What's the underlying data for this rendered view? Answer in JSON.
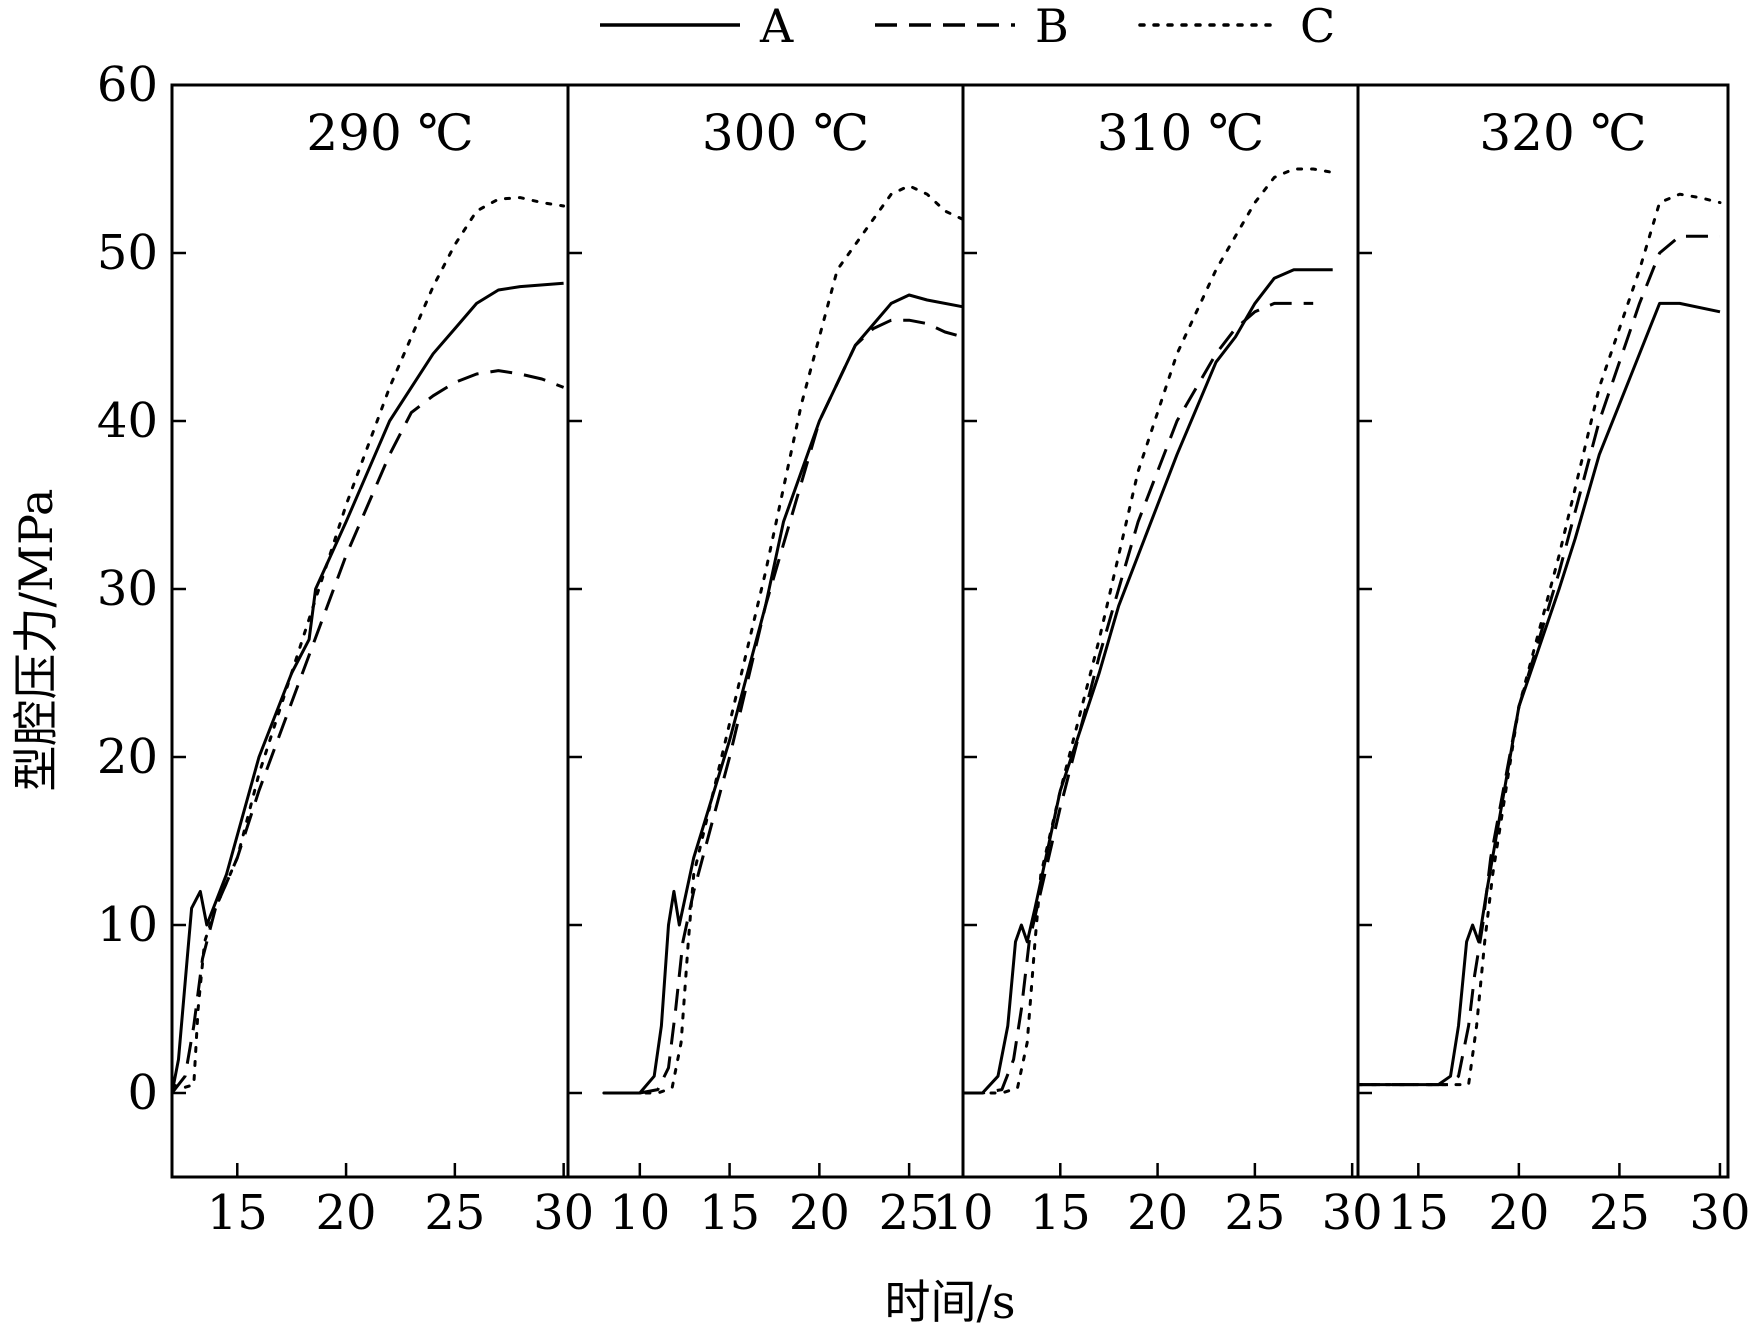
{
  "figure": {
    "xlabel": "时间/s",
    "ylabel": "型腔压力/MPa",
    "legend": [
      {
        "name": "A",
        "style": "solid"
      },
      {
        "name": "B",
        "style": "dashed"
      },
      {
        "name": "C",
        "style": "dotted"
      }
    ],
    "colors": {
      "line": "#000000",
      "background": "#ffffff"
    }
  },
  "chart_data": [
    {
      "type": "line",
      "title": "290 ℃",
      "xlim": [
        12,
        30.2
      ],
      "ylim": [
        -5,
        60
      ],
      "xticks": [
        15,
        20,
        25,
        30
      ],
      "yticks": [
        0,
        10,
        20,
        30,
        40,
        50,
        60
      ],
      "series": [
        {
          "name": "A",
          "x": [
            12,
            12.3,
            12.7,
            12.9,
            13.3,
            13.6,
            14.5,
            16,
            17.5,
            18.3,
            18.6,
            20,
            22,
            24,
            25,
            26,
            27,
            28,
            30
          ],
          "y": [
            0,
            2,
            8,
            11,
            12,
            10,
            13,
            20,
            25,
            27,
            30,
            34,
            40,
            44,
            45.5,
            47,
            47.8,
            48,
            48.2
          ]
        },
        {
          "name": "B",
          "x": [
            12,
            12.6,
            13,
            13.4,
            14,
            15,
            16,
            18,
            20,
            22,
            23,
            24,
            25,
            26,
            27,
            28,
            29,
            30
          ],
          "y": [
            0,
            1,
            4,
            8,
            11,
            14,
            18,
            25,
            32,
            38,
            40.5,
            41.5,
            42.3,
            42.8,
            43,
            42.8,
            42.5,
            42
          ]
        },
        {
          "name": "C",
          "x": [
            12,
            12.5,
            13,
            13.2,
            13.5,
            14,
            15,
            16,
            18,
            20,
            22,
            24,
            25,
            26,
            27,
            28,
            29,
            30
          ],
          "y": [
            0.5,
            0.3,
            0.5,
            5,
            9,
            11,
            14,
            19,
            27,
            35,
            42,
            48,
            50.5,
            52.5,
            53.2,
            53.3,
            53,
            52.8
          ]
        }
      ]
    },
    {
      "type": "line",
      "title": "300 ℃",
      "xlim": [
        6,
        28
      ],
      "ylim": [
        -5,
        60
      ],
      "xticks": [
        10,
        15,
        20,
        25
      ],
      "yticks": [
        0,
        10,
        20,
        30,
        40,
        50,
        60
      ],
      "series": [
        {
          "name": "A",
          "x": [
            8,
            10,
            10.8,
            11.2,
            11.6,
            11.9,
            12.2,
            12.6,
            13,
            15,
            17,
            18,
            20,
            22,
            24,
            25,
            26,
            28
          ],
          "y": [
            0,
            0,
            1,
            4,
            10,
            12,
            10,
            12,
            14,
            21,
            29,
            34,
            40,
            44.5,
            47,
            47.5,
            47.2,
            46.8
          ]
        },
        {
          "name": "B",
          "x": [
            8,
            10,
            11,
            11.6,
            12,
            12.4,
            13,
            15,
            17,
            20,
            22,
            23,
            24,
            25,
            26,
            27,
            28
          ],
          "y": [
            0,
            0,
            0.2,
            1.5,
            5,
            9,
            12,
            20,
            29,
            40,
            44.5,
            45.5,
            46,
            46,
            45.8,
            45.3,
            45
          ]
        },
        {
          "name": "C",
          "x": [
            8,
            10,
            11,
            11.8,
            12.3,
            12.7,
            13,
            15,
            17,
            19,
            21,
            23,
            24,
            25,
            26,
            27,
            28
          ],
          "y": [
            0,
            0,
            0,
            0.3,
            3,
            9,
            13,
            22,
            31,
            41,
            49,
            52,
            53.5,
            54,
            53.5,
            52.5,
            52
          ]
        }
      ]
    },
    {
      "type": "line",
      "title": "310 ℃",
      "xlim": [
        10,
        30.3
      ],
      "ylim": [
        -5,
        60
      ],
      "xticks": [
        10,
        15,
        20,
        25,
        30
      ],
      "yticks": [
        0,
        10,
        20,
        30,
        40,
        50,
        60
      ],
      "series": [
        {
          "name": "A",
          "x": [
            10,
            11,
            11.8,
            12.3,
            12.7,
            13,
            13.3,
            13.7,
            15,
            17,
            18,
            19,
            21,
            23,
            24,
            25,
            26,
            27,
            28,
            29
          ],
          "y": [
            0,
            0,
            1,
            4,
            9,
            10,
            9,
            11,
            18,
            25,
            29,
            32,
            38,
            43.5,
            45,
            47,
            48.5,
            49,
            49,
            49
          ]
        },
        {
          "name": "B",
          "x": [
            10,
            11,
            12,
            12.6,
            13,
            13.4,
            14,
            15,
            17,
            19,
            21,
            23,
            24,
            25,
            26,
            27,
            28
          ],
          "y": [
            0,
            0,
            0.2,
            2,
            5,
            9,
            12,
            17,
            26,
            34,
            40,
            44,
            45.5,
            46.5,
            47,
            47,
            47
          ]
        },
        {
          "name": "C",
          "x": [
            10,
            11,
            12,
            12.8,
            13.3,
            13.7,
            14,
            15,
            17,
            19,
            21,
            23,
            24,
            25,
            26,
            27,
            28,
            29
          ],
          "y": [
            0,
            0,
            0,
            0.3,
            3,
            9,
            13,
            18,
            27,
            37,
            44,
            49,
            51,
            53,
            54.5,
            55,
            55,
            54.8
          ]
        }
      ]
    },
    {
      "type": "line",
      "title": "320 ℃",
      "xlim": [
        12,
        30.4
      ],
      "ylim": [
        -5,
        60
      ],
      "xticks": [
        15,
        20,
        25,
        30
      ],
      "yticks": [
        0,
        10,
        20,
        30,
        40,
        50,
        60
      ],
      "series": [
        {
          "name": "A",
          "x": [
            12,
            14,
            16,
            16.6,
            17,
            17.4,
            17.7,
            18,
            18.4,
            20,
            22,
            22.8,
            24,
            25.5,
            27,
            28,
            30
          ],
          "y": [
            0.5,
            0.5,
            0.5,
            1,
            4,
            9,
            10,
            9,
            12,
            23,
            30,
            33,
            38,
            42.5,
            47,
            47,
            46.5
          ]
        },
        {
          "name": "B",
          "x": [
            12,
            14,
            16.5,
            17,
            17.5,
            17.8,
            18.2,
            18.6,
            20,
            22,
            24,
            26,
            27,
            28,
            29,
            30
          ],
          "y": [
            0.5,
            0.5,
            0.5,
            1,
            4,
            7,
            10,
            14,
            23,
            31,
            40,
            47,
            50,
            51,
            51,
            51
          ]
        },
        {
          "name": "C",
          "x": [
            12,
            14,
            17,
            17.5,
            17.9,
            18.3,
            18.7,
            20,
            22,
            24,
            26,
            27,
            28,
            29,
            30
          ],
          "y": [
            0.5,
            0.5,
            0.5,
            0.5,
            4,
            9,
            13,
            23,
            32,
            42,
            49,
            53,
            53.5,
            53.3,
            53
          ]
        }
      ]
    }
  ]
}
